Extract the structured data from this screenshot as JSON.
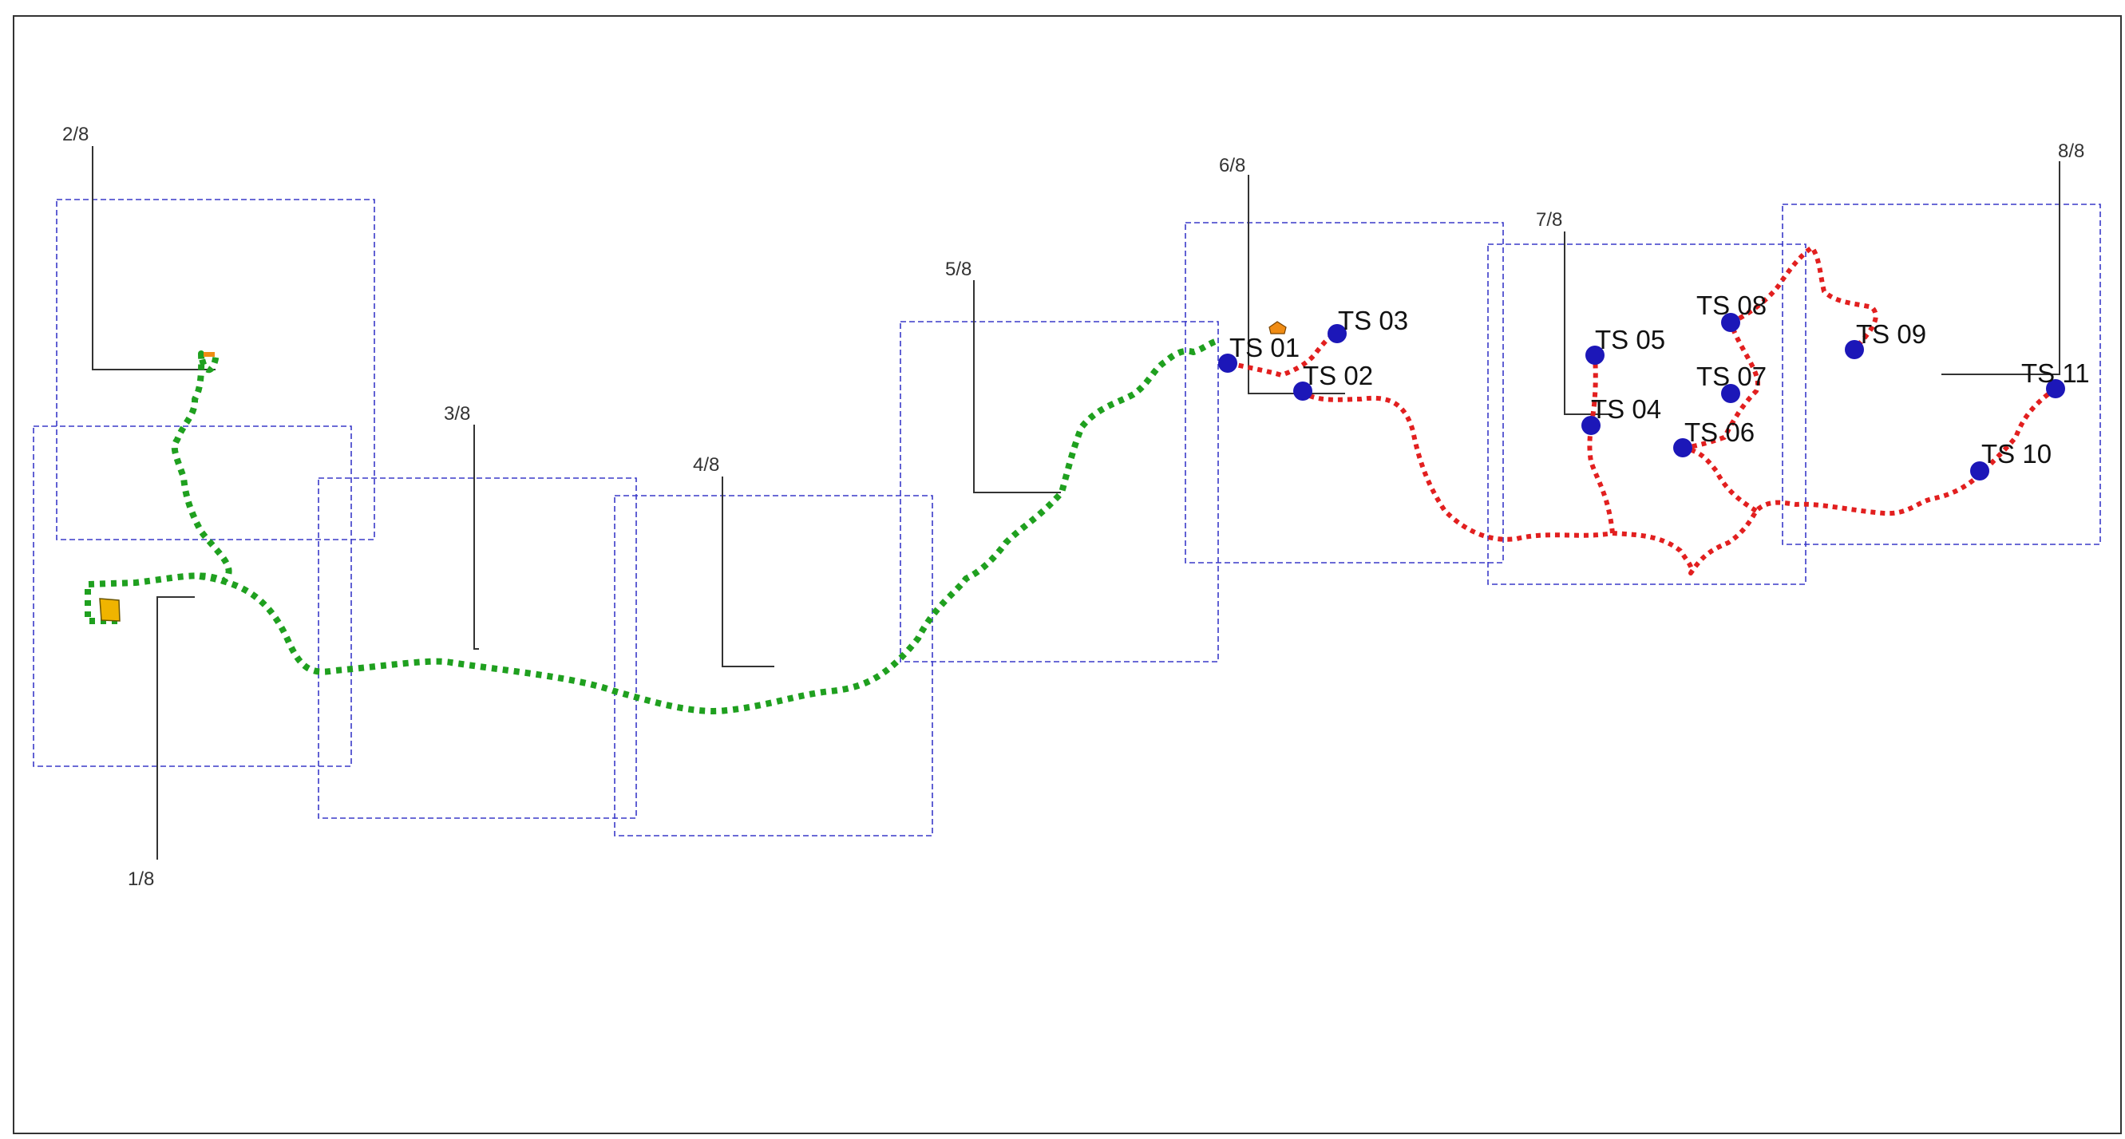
{
  "sheets": [
    {
      "id": "1",
      "label": "1/8"
    },
    {
      "id": "2",
      "label": "2/8"
    },
    {
      "id": "3",
      "label": "3/8"
    },
    {
      "id": "4",
      "label": "4/8"
    },
    {
      "id": "5",
      "label": "5/8"
    },
    {
      "id": "6",
      "label": "6/8"
    },
    {
      "id": "7",
      "label": "7/8"
    },
    {
      "id": "8",
      "label": "8/8"
    }
  ],
  "stations": [
    {
      "id": "01",
      "label": "TS 01"
    },
    {
      "id": "02",
      "label": "TS 02"
    },
    {
      "id": "03",
      "label": "TS 03"
    },
    {
      "id": "04",
      "label": "TS 04"
    },
    {
      "id": "05",
      "label": "TS 05"
    },
    {
      "id": "06",
      "label": "TS 06"
    },
    {
      "id": "07",
      "label": "TS 07"
    },
    {
      "id": "08",
      "label": "TS 08"
    },
    {
      "id": "09",
      "label": "TS 09"
    },
    {
      "id": "10",
      "label": "TS 10"
    },
    {
      "id": "11",
      "label": "TS 11"
    }
  ],
  "colors": {
    "main_route": "#1fa01f",
    "branch_routes": "#e21f1f",
    "station": "#1c17b8",
    "sheet_border": "#3a3ac8",
    "start_building": "#f0b400",
    "junction_building": "#f08c14"
  }
}
